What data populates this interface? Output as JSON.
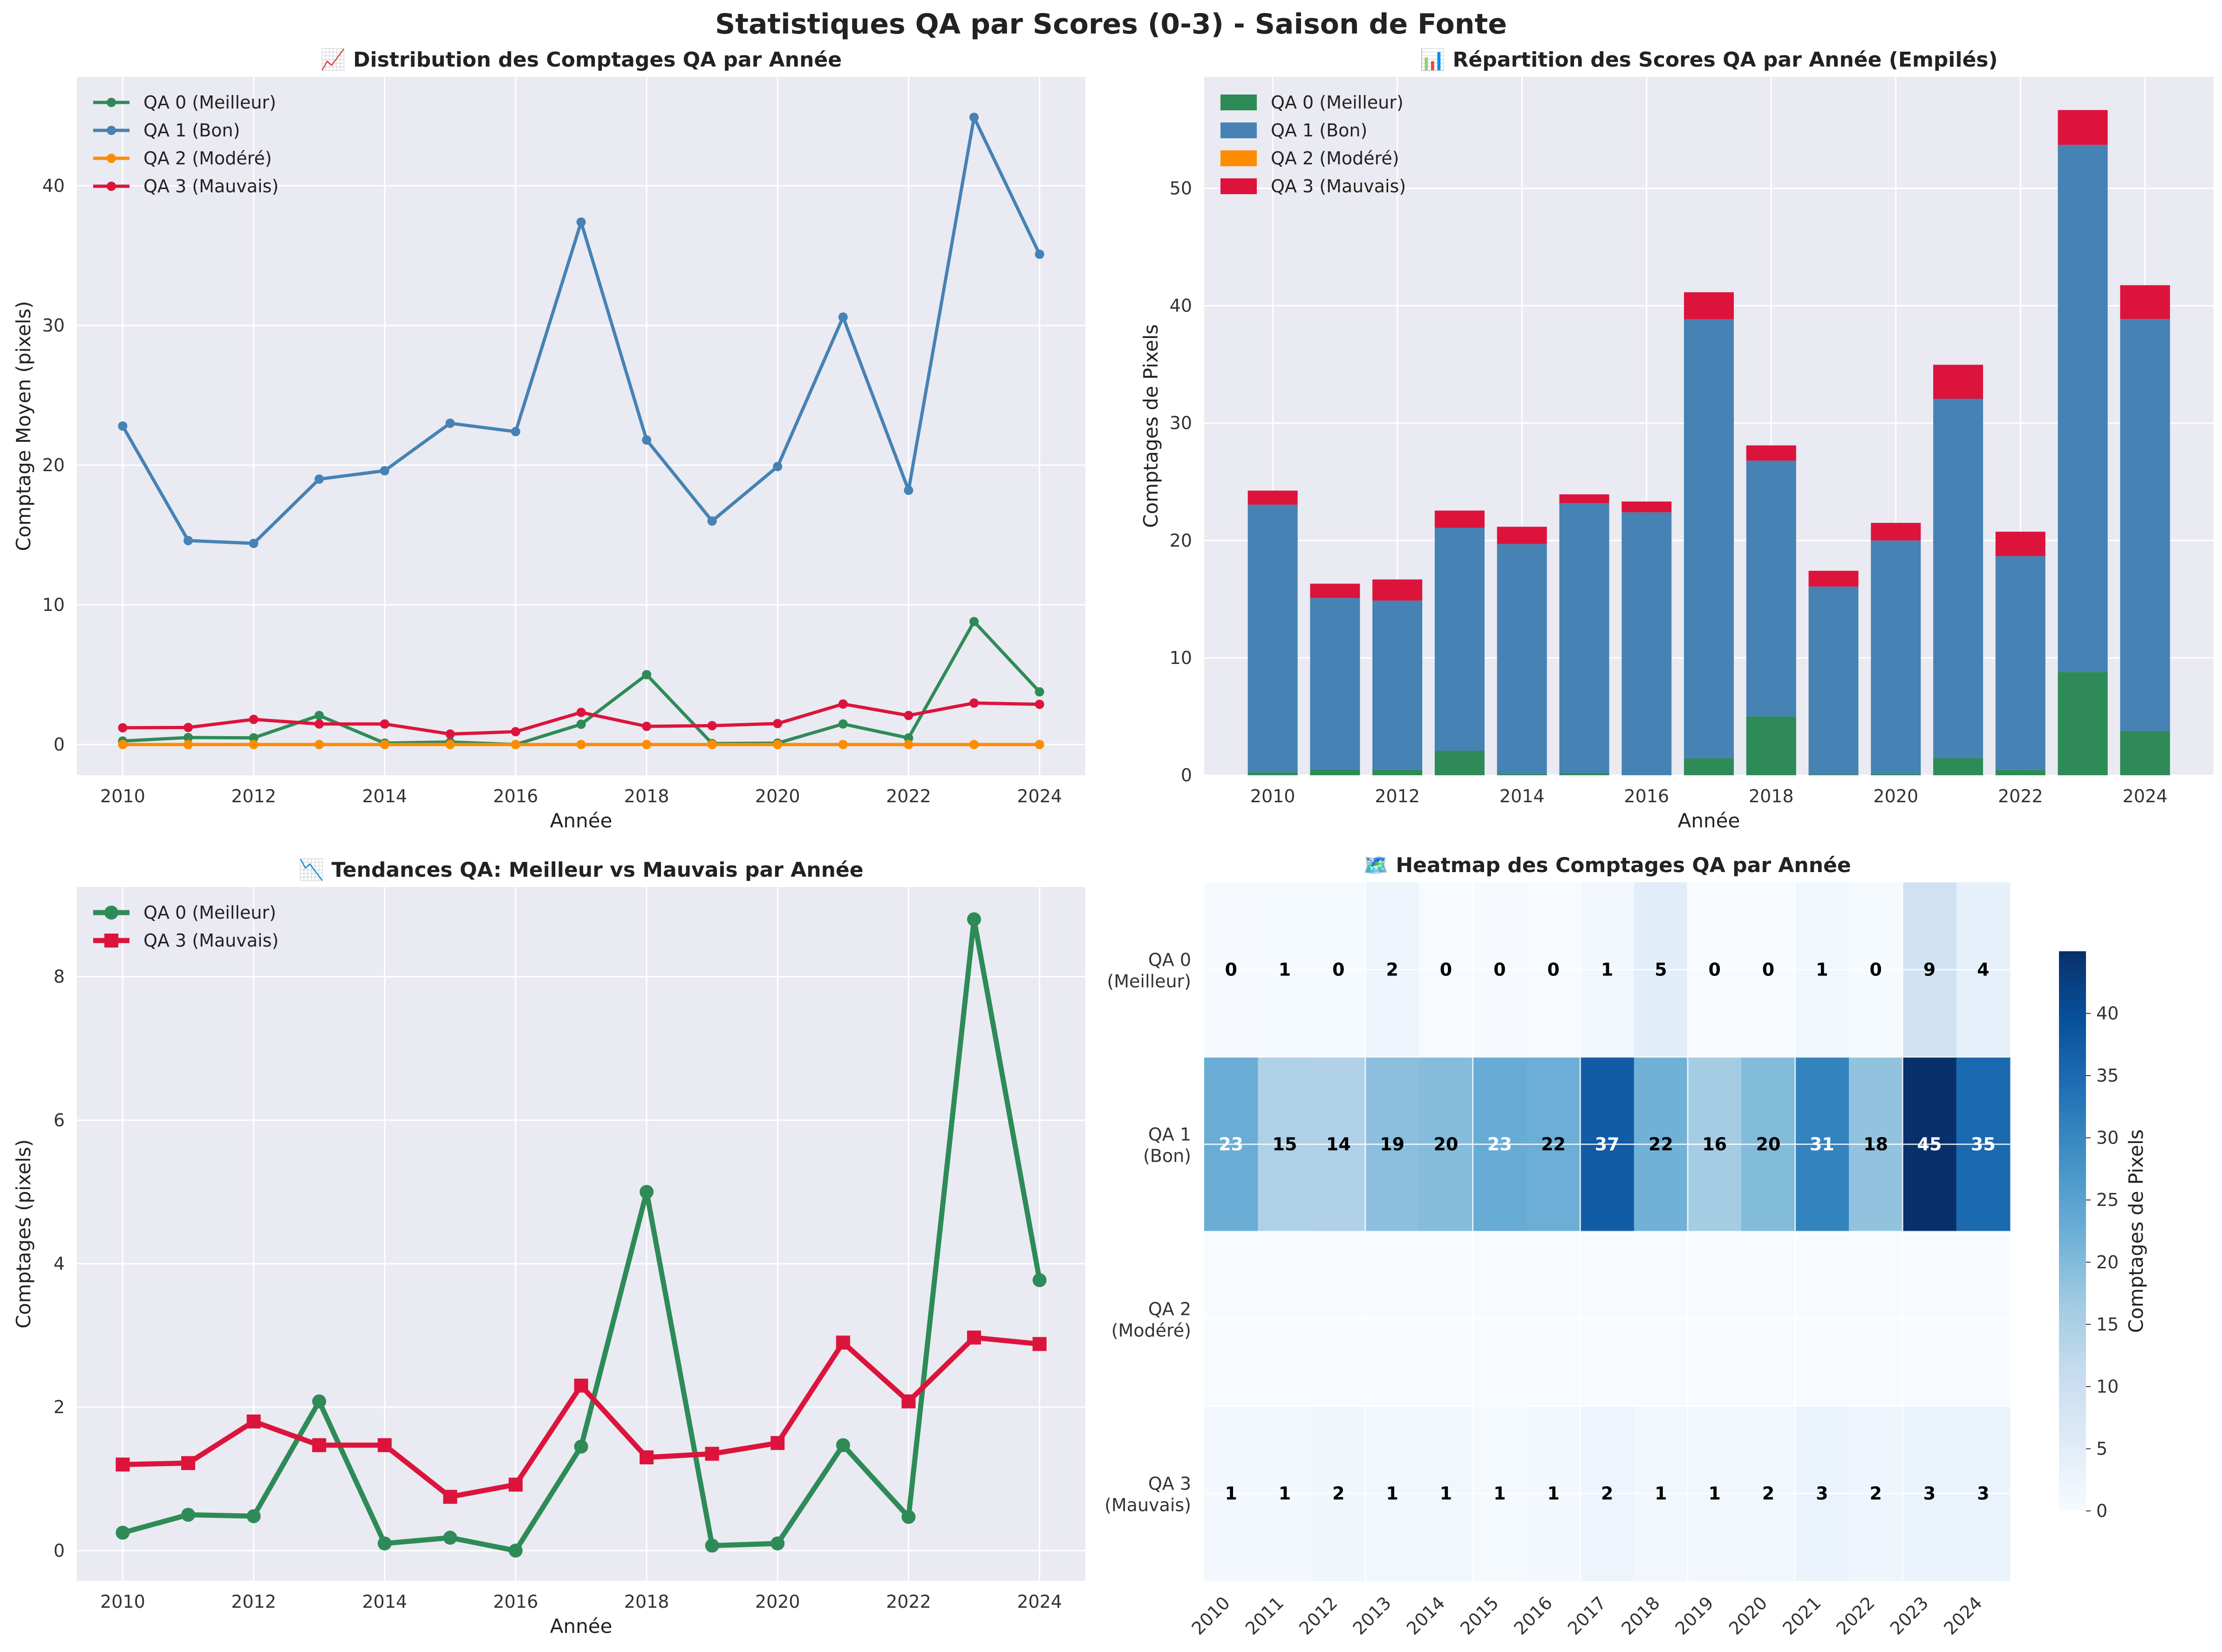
{
  "suptitle": "Statistiques QA par Scores (0-3) - Saison de Fonte",
  "colors": {
    "qa0": "#2e8b57",
    "qa1": "#4682b4",
    "qa2": "#ff8c00",
    "qa3": "#dc143c",
    "panel_bg": "#eaeaf2"
  },
  "chart_data": [
    {
      "type": "line",
      "title": "📈 Distribution des Comptages QA par Année",
      "xlabel": "Année",
      "ylabel": "Comptage Moyen (pixels)",
      "x": [
        2010,
        2011,
        2012,
        2013,
        2014,
        2015,
        2016,
        2017,
        2018,
        2019,
        2020,
        2021,
        2022,
        2023,
        2024
      ],
      "xticks": [
        2010,
        2012,
        2014,
        2016,
        2018,
        2020,
        2022,
        2024
      ],
      "yticks": [
        0,
        10,
        20,
        30,
        40
      ],
      "ylim": [
        -2.2,
        47.8
      ],
      "xlim": [
        2009.3,
        2024.7
      ],
      "grid": true,
      "legend": "top-left",
      "series": [
        {
          "name": "QA 0 (Meilleur)",
          "color": "#2e8b57",
          "values": [
            0.25,
            0.5,
            0.48,
            2.08,
            0.1,
            0.18,
            0.0,
            1.45,
            5.0,
            0.07,
            0.1,
            1.47,
            0.47,
            8.8,
            3.77
          ]
        },
        {
          "name": "QA 1 (Bon)",
          "color": "#4682b4",
          "values": [
            22.8,
            14.6,
            14.4,
            19.0,
            19.6,
            23.0,
            22.4,
            37.4,
            21.8,
            16.0,
            19.9,
            30.6,
            18.2,
            44.9,
            35.1
          ]
        },
        {
          "name": "QA 2 (Modéré)",
          "color": "#ff8c00",
          "values": [
            0,
            0,
            0,
            0,
            0,
            0,
            0,
            0,
            0,
            0,
            0,
            0,
            0,
            0,
            0
          ]
        },
        {
          "name": "QA 3 (Mauvais)",
          "color": "#dc143c",
          "values": [
            1.2,
            1.22,
            1.8,
            1.47,
            1.47,
            0.75,
            0.92,
            2.3,
            1.3,
            1.35,
            1.5,
            2.9,
            2.08,
            2.97,
            2.88
          ]
        }
      ]
    },
    {
      "type": "bar",
      "stacked": true,
      "title": "📊 Répartition des Scores QA par Année (Empilés)",
      "xlabel": "Année",
      "ylabel": "Comptages de Pixels",
      "categories": [
        2010,
        2011,
        2012,
        2013,
        2014,
        2015,
        2016,
        2017,
        2018,
        2019,
        2020,
        2021,
        2022,
        2023,
        2024
      ],
      "xticks": [
        2010,
        2012,
        2014,
        2016,
        2018,
        2020,
        2022,
        2024
      ],
      "yticks": [
        0,
        10,
        20,
        30,
        40,
        50
      ],
      "ylim": [
        0,
        59.5
      ],
      "xlim": [
        2008.9,
        2025.1
      ],
      "grid": true,
      "legend": "top-left",
      "series": [
        {
          "name": "QA 0 (Meilleur)",
          "color": "#2e8b57",
          "values": [
            0.25,
            0.5,
            0.48,
            2.08,
            0.1,
            0.18,
            0.0,
            1.45,
            5.0,
            0.07,
            0.1,
            1.47,
            0.47,
            8.8,
            3.77
          ]
        },
        {
          "name": "QA 1 (Bon)",
          "color": "#4682b4",
          "values": [
            22.8,
            14.6,
            14.4,
            19.0,
            19.6,
            23.0,
            22.4,
            37.4,
            21.8,
            16.0,
            19.9,
            30.6,
            18.2,
            44.9,
            35.1
          ]
        },
        {
          "name": "QA 2 (Modéré)",
          "color": "#ff8c00",
          "values": [
            0,
            0,
            0,
            0,
            0,
            0,
            0,
            0,
            0,
            0,
            0,
            0,
            0,
            0,
            0
          ]
        },
        {
          "name": "QA 3 (Mauvais)",
          "color": "#dc143c",
          "values": [
            1.2,
            1.22,
            1.8,
            1.47,
            1.47,
            0.75,
            0.92,
            2.3,
            1.3,
            1.35,
            1.5,
            2.9,
            2.08,
            2.97,
            2.88
          ]
        }
      ]
    },
    {
      "type": "line",
      "title": "📉 Tendances QA: Meilleur vs Mauvais par Année",
      "xlabel": "Année",
      "ylabel": "Comptages (pixels)",
      "x": [
        2010,
        2011,
        2012,
        2013,
        2014,
        2015,
        2016,
        2017,
        2018,
        2019,
        2020,
        2021,
        2022,
        2023,
        2024
      ],
      "xticks": [
        2010,
        2012,
        2014,
        2016,
        2018,
        2020,
        2022,
        2024
      ],
      "yticks": [
        0,
        2,
        4,
        6,
        8
      ],
      "ylim": [
        -0.42,
        9.25
      ],
      "xlim": [
        2009.3,
        2024.7
      ],
      "grid": true,
      "legend": "top-left",
      "series": [
        {
          "name": "QA 0 (Meilleur)",
          "color": "#2e8b57",
          "marker": "circle",
          "values": [
            0.25,
            0.5,
            0.48,
            2.08,
            0.1,
            0.18,
            0.0,
            1.45,
            5.0,
            0.07,
            0.1,
            1.47,
            0.47,
            8.8,
            3.77
          ]
        },
        {
          "name": "QA 3 (Mauvais)",
          "color": "#dc143c",
          "marker": "square",
          "values": [
            1.2,
            1.22,
            1.8,
            1.47,
            1.47,
            0.75,
            0.92,
            2.3,
            1.3,
            1.35,
            1.5,
            2.9,
            2.08,
            2.97,
            2.88
          ]
        }
      ]
    },
    {
      "type": "heatmap",
      "title": "🗺️ Heatmap des Comptages QA par Année",
      "columns": [
        "2010",
        "2011",
        "2012",
        "2013",
        "2014",
        "2015",
        "2016",
        "2017",
        "2018",
        "2019",
        "2020",
        "2021",
        "2022",
        "2023",
        "2024"
      ],
      "rows": [
        {
          "label_line1": "QA 0",
          "label_line2": "(Meilleur)",
          "values": [
            0.25,
            0.5,
            0.48,
            2.08,
            0.1,
            0.18,
            0.0,
            1.45,
            5.0,
            0.07,
            0.1,
            1.47,
            0.47,
            8.8,
            3.77
          ],
          "annotations": [
            "0",
            "1",
            "0",
            "2",
            "0",
            "0",
            "0",
            "1",
            "5",
            "0",
            "0",
            "1",
            "0",
            "9",
            "4"
          ]
        },
        {
          "label_line1": "QA 1",
          "label_line2": "(Bon)",
          "values": [
            22.8,
            14.6,
            14.4,
            19.0,
            19.6,
            23.0,
            22.4,
            37.4,
            21.8,
            16.0,
            19.9,
            30.6,
            18.2,
            44.9,
            35.1
          ],
          "annotations": [
            "23",
            "15",
            "14",
            "19",
            "20",
            "23",
            "22",
            "37",
            "22",
            "16",
            "20",
            "31",
            "18",
            "45",
            "35"
          ]
        },
        {
          "label_line1": "QA 2",
          "label_line2": "(Modéré)",
          "values": [
            0,
            0,
            0,
            0,
            0,
            0,
            0,
            0,
            0,
            0,
            0,
            0,
            0,
            0,
            0
          ],
          "annotations": [
            "",
            "",
            "",
            "",
            "",
            "",
            "",
            "",
            "",
            "",
            "",
            "",
            "",
            "",
            ""
          ]
        },
        {
          "label_line1": "QA 3",
          "label_line2": "(Mauvais)",
          "values": [
            1.2,
            1.22,
            1.8,
            1.47,
            1.47,
            0.75,
            0.92,
            2.3,
            1.3,
            1.35,
            1.5,
            2.9,
            2.08,
            2.97,
            2.88
          ],
          "annotations": [
            "1",
            "1",
            "2",
            "1",
            "1",
            "1",
            "1",
            "2",
            "1",
            "1",
            "2",
            "3",
            "2",
            "3",
            "3"
          ]
        }
      ],
      "colorbar": {
        "label": "Comptages de Pixels",
        "ticks": [
          0,
          5,
          10,
          15,
          20,
          25,
          30,
          35,
          40
        ],
        "vmin": 0,
        "vmax": 45
      }
    }
  ]
}
